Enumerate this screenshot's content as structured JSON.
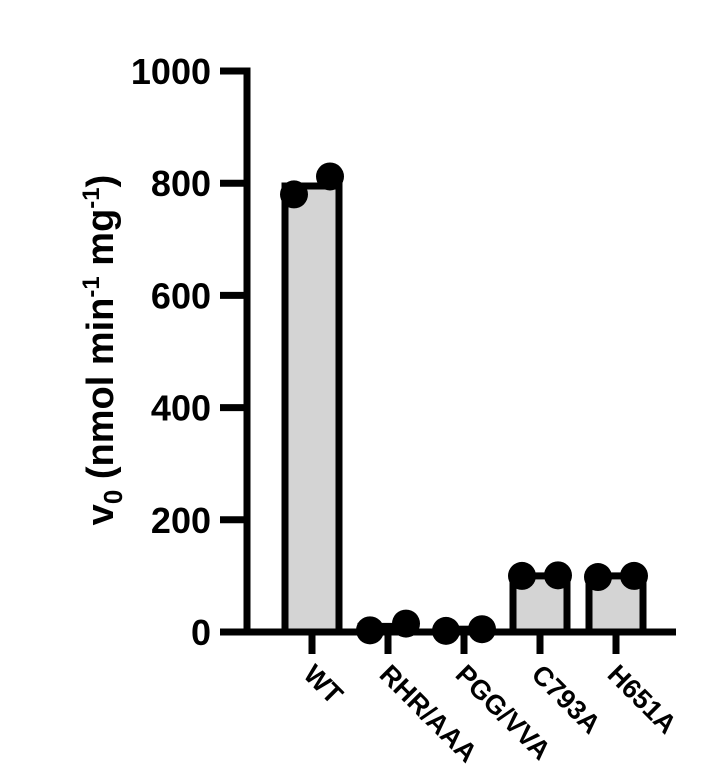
{
  "chart_data": {
    "type": "bar",
    "title": "",
    "xlabel": "",
    "ylabel": {
      "main": "v",
      "subscript": "0",
      "prefix": " (nmol min",
      "sup1": "-1",
      "middle": " mg",
      "sup2": "-1",
      "suffix": ")"
    },
    "ylim": [
      0,
      1000
    ],
    "yticks": [
      0,
      200,
      400,
      600,
      800,
      1000
    ],
    "ytick_labels": [
      "0",
      "200",
      "400",
      "600",
      "800",
      "1000"
    ],
    "categories": [
      "WT",
      "RHR/AAA",
      "PGG/VVA",
      "C793A",
      "H651A"
    ],
    "values": [
      795,
      10,
      5,
      100,
      100
    ],
    "points": [
      [
        780,
        812
      ],
      [
        3,
        15
      ],
      [
        2,
        5
      ],
      [
        100,
        101
      ],
      [
        98,
        100
      ]
    ],
    "bar_color": "#d4d4d4",
    "edge_color": "#000000",
    "grid": false,
    "legend": "none"
  }
}
